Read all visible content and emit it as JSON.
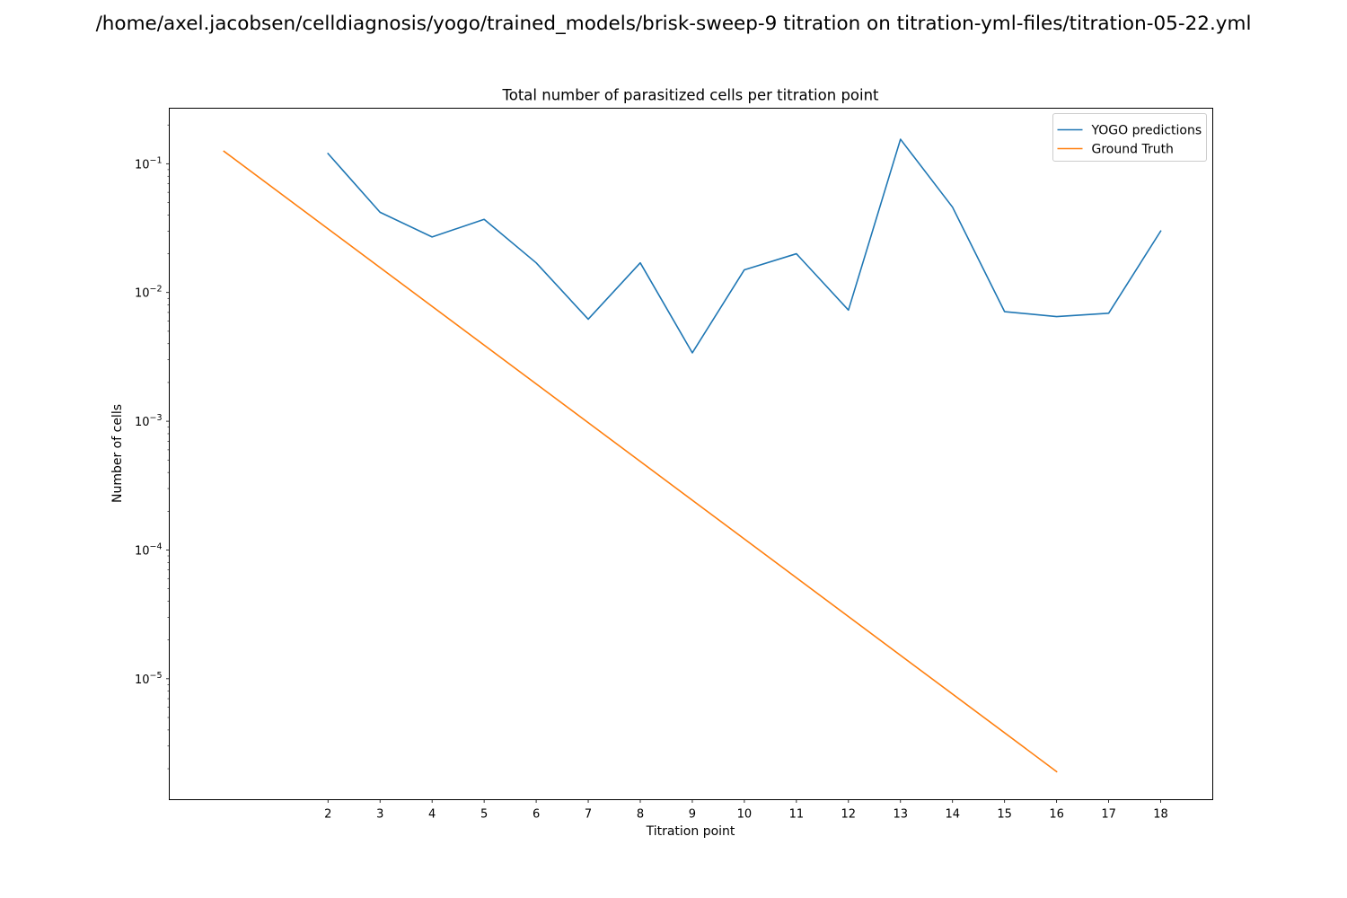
{
  "figure": {
    "suptitle": "/home/axel.jacobsen/celldiagnosis/yogo/trained_models/brisk-sweep-9 titration on titration-yml-files/titration-05-22.yml"
  },
  "chart_data": {
    "type": "line",
    "title": "Total number of parasitized cells per titration point",
    "xlabel": "Titration point",
    "ylabel": "Number of cells",
    "yscale": "log",
    "xlim": [
      -1.05,
      19.0
    ],
    "ylim": [
      1.15e-06,
      0.27
    ],
    "x_ticks": [
      2,
      3,
      4,
      5,
      6,
      7,
      8,
      9,
      10,
      11,
      12,
      13,
      14,
      15,
      16,
      17,
      18
    ],
    "y_ticks": [
      {
        "value": 0.1,
        "base": "10",
        "exp": "−1"
      },
      {
        "value": 0.01,
        "base": "10",
        "exp": "−2"
      },
      {
        "value": 0.001,
        "base": "10",
        "exp": "−3"
      },
      {
        "value": 0.0001,
        "base": "10",
        "exp": "−4"
      },
      {
        "value": 1e-05,
        "base": "10",
        "exp": "−5"
      }
    ],
    "grid": false,
    "legend_position": "top-right",
    "series": [
      {
        "name": "YOGO predictions",
        "color": "#1f77b4",
        "x": [
          2,
          3,
          4,
          5,
          6,
          7,
          8,
          9,
          10,
          11,
          12,
          13,
          14,
          15,
          16,
          17,
          18
        ],
        "y": [
          0.12,
          0.042,
          0.027,
          0.037,
          0.017,
          0.0062,
          0.017,
          0.0034,
          0.015,
          0.02,
          0.0073,
          0.155,
          0.046,
          0.0071,
          0.0065,
          0.0069,
          0.03
        ]
      },
      {
        "name": "Ground Truth",
        "color": "#ff7f0e",
        "x": [
          0,
          16
        ],
        "y": [
          0.125,
          1.9e-06
        ]
      }
    ]
  }
}
